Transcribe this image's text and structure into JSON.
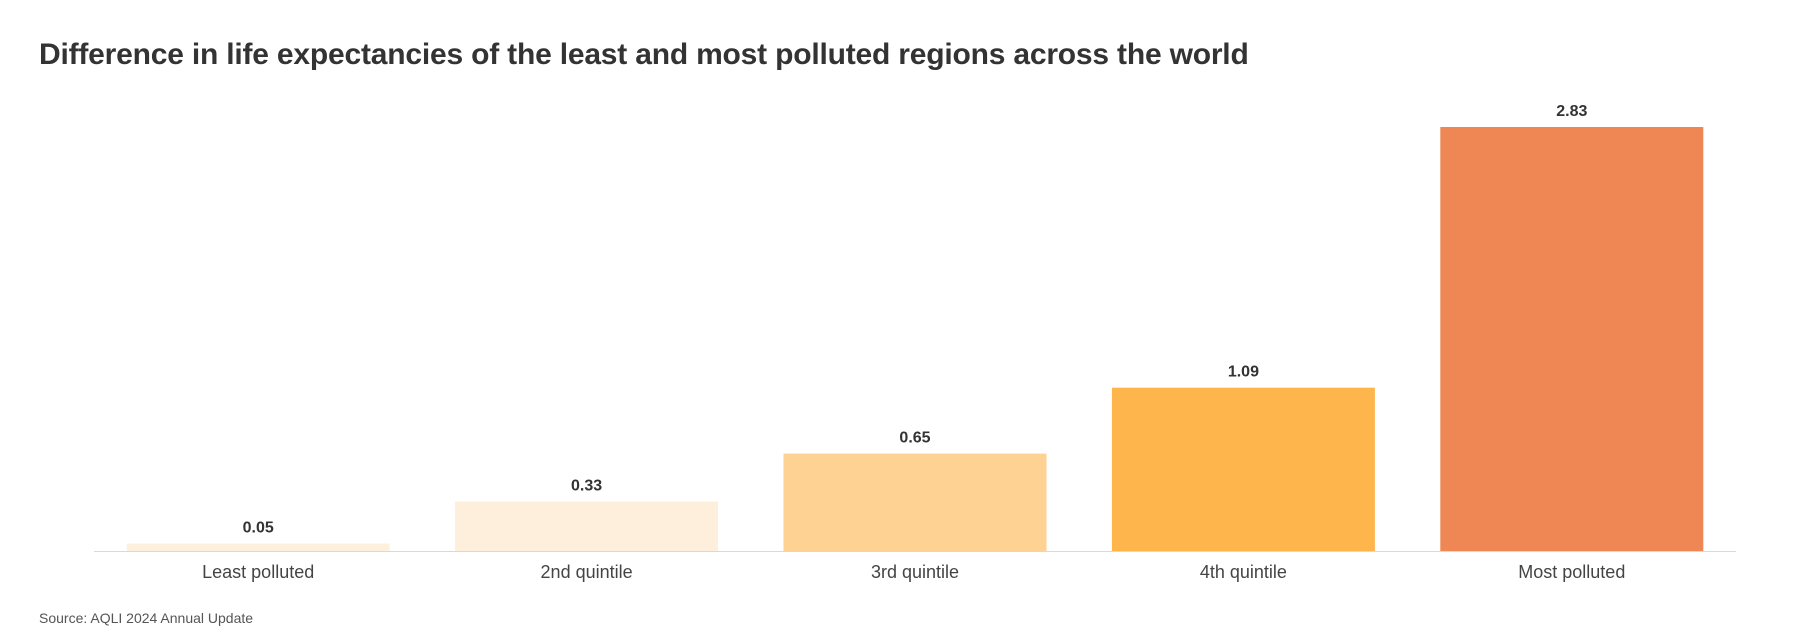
{
  "chart_data": {
    "type": "bar",
    "title": "Difference in life expectancies of the least and most polluted regions across the world",
    "categories": [
      "Least polluted",
      "2nd quintile",
      "3rd quintile",
      "4th quintile",
      "Most polluted"
    ],
    "values": [
      0.05,
      0.33,
      0.65,
      1.09,
      2.83
    ],
    "value_labels": [
      "0.05",
      "0.33",
      "0.65",
      "1.09",
      "2.83"
    ],
    "colors": [
      "#fdf0dd",
      "#fdefdc",
      "#fdd292",
      "#feb54c",
      "#ee8753"
    ],
    "ylim": [
      0,
      2.83
    ],
    "grid": false,
    "legend": "none",
    "source": "Source: AQLI 2024 Annual Update"
  }
}
